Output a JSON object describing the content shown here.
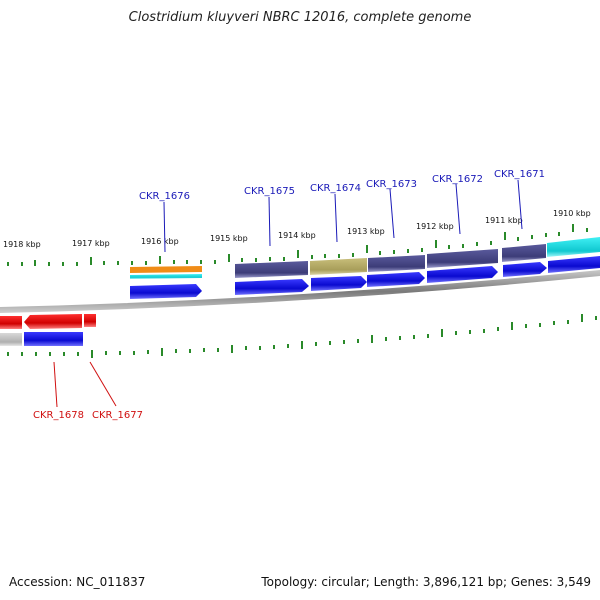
{
  "title": "Clostridium kluyveri NBRC 12016, complete genome",
  "footer": {
    "accession": "Accession: NC_011837",
    "info": "Topology: circular; Length: 3,896,121 bp; Genes: 3,549"
  },
  "kbp_labels": [
    "1918 kbp",
    "1917 kbp",
    "1916 kbp",
    "1915 kbp",
    "1914 kbp",
    "1913 kbp",
    "1912 kbp",
    "1911 kbp",
    "1910 kbp"
  ],
  "genes_forward": [
    "CKR_1676",
    "CKR_1675",
    "CKR_1674",
    "CKR_1673",
    "CKR_1672",
    "CKR_1671"
  ],
  "genes_reverse": [
    "CKR_1678",
    "CKR_1677"
  ],
  "colors": {
    "forward_label": "#1a1ab8",
    "reverse_label": "#d01010",
    "cds_blue": "#1010e0",
    "gene_red": "#e01010",
    "gene_purple": "#4a4a8c",
    "gene_khaki": "#b8ae6a",
    "gene_cyan": "#18d8e0",
    "gene_orange": "#f08c18",
    "tick_green": "#2a8a2a",
    "backbone": "#888888"
  }
}
